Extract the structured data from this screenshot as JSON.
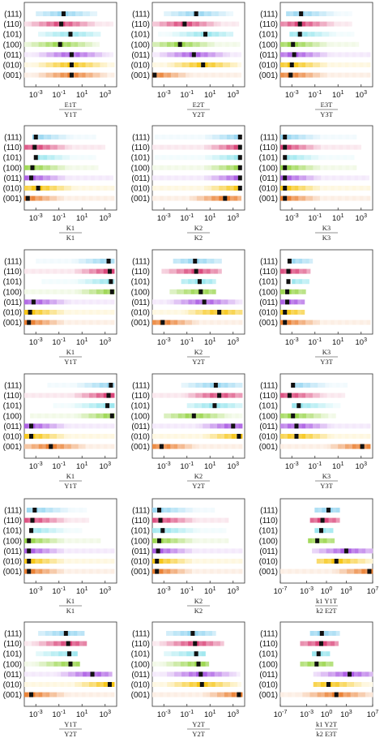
{
  "chart_data": {
    "type": "heatmap",
    "description_layout": "6 rows x 3 columns grid of panels; each panel has 7 horizontal strips (one per crystal direction) with a black marker",
    "row_labels": [
      "(111)",
      "(110)",
      "(101)",
      "(100)",
      "(011)",
      "(010)",
      "(001)"
    ],
    "series_colors": [
      "#8fd3f0",
      "#d6336c",
      "#8fe3ec",
      "#8fd13a",
      "#a24be0",
      "#f5c000",
      "#e8731e"
    ],
    "x_scale": "log10",
    "panels": [
      {
        "xlabel": "E1T / Y1T",
        "xlim_exp": [
          -4,
          4
        ],
        "ticks": [
          "10-3",
          "10-1",
          "101",
          "103"
        ],
        "strips": [
          {
            "from": -3.0,
            "to": 2.3,
            "marker": -0.6
          },
          {
            "from": -4.0,
            "to": 3.7,
            "marker": -0.8
          },
          {
            "from": -2.8,
            "to": 2.6,
            "marker": 0.0
          },
          {
            "from": -4.0,
            "to": 2.5,
            "marker": -0.9
          },
          {
            "from": -4.0,
            "to": 3.7,
            "marker": 0.1
          },
          {
            "from": -4.0,
            "to": 3.8,
            "marker": 0.1
          },
          {
            "from": -4.0,
            "to": 3.8,
            "marker": 0.1
          }
        ]
      },
      {
        "xlabel": "E2T / Y2T",
        "xlim_exp": [
          -4,
          4
        ],
        "ticks": [
          "10-3",
          "10-1",
          "101",
          "103"
        ],
        "strips": [
          {
            "from": -3.0,
            "to": 3.0,
            "marker": -0.2
          },
          {
            "from": -4.0,
            "to": 3.5,
            "marker": -1.2
          },
          {
            "from": -3.5,
            "to": 3.0,
            "marker": 0.6
          },
          {
            "from": -4.0,
            "to": 3.6,
            "marker": -1.6
          },
          {
            "from": -4.0,
            "to": 3.7,
            "marker": -0.4
          },
          {
            "from": -4.0,
            "to": 3.7,
            "marker": 0.4
          },
          {
            "from": -4.0,
            "to": 3.7,
            "marker": -3.8
          }
        ]
      },
      {
        "xlabel": "E3T / Y3T",
        "xlim_exp": [
          -4,
          4
        ],
        "ticks": [
          "10-3",
          "10-1",
          "101",
          "103"
        ],
        "strips": [
          {
            "from": -3.5,
            "to": 2.2,
            "marker": -2.2
          },
          {
            "from": -4.0,
            "to": 2.2,
            "marker": -2.3
          },
          {
            "from": -3.2,
            "to": 2.4,
            "marker": -2.3
          },
          {
            "from": -4.0,
            "to": 2.8,
            "marker": -2.9
          },
          {
            "from": -4.0,
            "to": 3.8,
            "marker": -2.8
          },
          {
            "from": -4.0,
            "to": 3.8,
            "marker": -3.0
          },
          {
            "from": -4.0,
            "to": 3.8,
            "marker": -3.1
          }
        ]
      },
      {
        "xlabel": "K1 / K1",
        "xlim_exp": [
          -4,
          4
        ],
        "ticks": [
          "10-3",
          "10-1",
          "101",
          "103"
        ],
        "strips": [
          {
            "from": -3.3,
            "to": 2.2,
            "marker": -3.0
          },
          {
            "from": -4.0,
            "to": 3.0,
            "marker": -3.1
          },
          {
            "from": -3.0,
            "to": 2.2,
            "marker": -3.0
          },
          {
            "from": -4.0,
            "to": 2.4,
            "marker": -3.3
          },
          {
            "from": -4.0,
            "to": 3.7,
            "marker": -3.4
          },
          {
            "from": -4.0,
            "to": 3.8,
            "marker": -2.8
          },
          {
            "from": -4.0,
            "to": 3.8,
            "marker": -3.7
          }
        ]
      },
      {
        "xlabel": "K2 / K2",
        "xlim_exp": [
          -4,
          4
        ],
        "ticks": [
          "10-3",
          "10-1",
          "101",
          "103"
        ],
        "strips": [
          {
            "from": -3.8,
            "to": 3.7,
            "marker": 3.6
          },
          {
            "from": -4.0,
            "to": 3.7,
            "marker": 3.6
          },
          {
            "from": -3.8,
            "to": 3.7,
            "marker": 3.6
          },
          {
            "from": -4.0,
            "to": 3.7,
            "marker": 3.6
          },
          {
            "from": -4.0,
            "to": 3.7,
            "marker": 3.6
          },
          {
            "from": -4.0,
            "to": 3.7,
            "marker": 3.6
          },
          {
            "from": -4.0,
            "to": 3.7,
            "marker": 2.3
          }
        ]
      },
      {
        "xlabel": "K3 / K3",
        "xlim_exp": [
          -4,
          4
        ],
        "ticks": [
          "10-3",
          "10-1",
          "101",
          "103"
        ],
        "strips": [
          {
            "from": -4.0,
            "to": 2.6,
            "marker": -3.6
          },
          {
            "from": -4.0,
            "to": 3.0,
            "marker": -3.6
          },
          {
            "from": -3.5,
            "to": 2.4,
            "marker": -3.6
          },
          {
            "from": -4.0,
            "to": 2.6,
            "marker": -3.6
          },
          {
            "from": -4.0,
            "to": 3.7,
            "marker": -3.6
          },
          {
            "from": -4.0,
            "to": 3.8,
            "marker": -3.6
          },
          {
            "from": -4.0,
            "to": 3.8,
            "marker": -3.6
          }
        ]
      },
      {
        "xlabel": "K1 / Y1T",
        "xlim_exp": [
          -4,
          4
        ],
        "ticks": [
          "10-3",
          "10-1",
          "101",
          "103"
        ],
        "strips": [
          {
            "from": -3.0,
            "to": 3.8,
            "marker": 3.3
          },
          {
            "from": -4.0,
            "to": 3.8,
            "marker": 3.4
          },
          {
            "from": -2.5,
            "to": 3.8,
            "marker": 3.5
          },
          {
            "from": -4.0,
            "to": 3.8,
            "marker": 3.6
          },
          {
            "from": -4.0,
            "to": 3.8,
            "marker": -3.2
          },
          {
            "from": -4.0,
            "to": 3.8,
            "marker": -3.5
          },
          {
            "from": -4.0,
            "to": 3.8,
            "marker": -3.6
          }
        ]
      },
      {
        "xlabel": "K2 / Y2T",
        "xlim_exp": [
          -4,
          4
        ],
        "ticks": [
          "10-3",
          "10-1",
          "101",
          "103"
        ],
        "strips": [
          {
            "from": -2.2,
            "to": 2.0,
            "marker": -0.3
          },
          {
            "from": -3.2,
            "to": 2.0,
            "marker": -0.2
          },
          {
            "from": -1.5,
            "to": 1.5,
            "marker": 0.1
          },
          {
            "from": -2.5,
            "to": 1.5,
            "marker": 0.2
          },
          {
            "from": -4.0,
            "to": 3.8,
            "marker": 0.5
          },
          {
            "from": -4.0,
            "to": 3.8,
            "marker": 1.8
          },
          {
            "from": -4.0,
            "to": 3.8,
            "marker": -3.1
          }
        ]
      },
      {
        "xlabel": "K3 / Y3T",
        "xlim_exp": [
          -4,
          4
        ],
        "ticks": [
          "10-3",
          "10-1",
          "101",
          "103"
        ],
        "strips": [
          {
            "from": -3.0,
            "to": -1.2,
            "marker": -3.2
          },
          {
            "from": -4.0,
            "to": -1.4,
            "marker": -3.3
          },
          {
            "from": -3.0,
            "to": -1.5,
            "marker": -3.3
          },
          {
            "from": -4.0,
            "to": -1.8,
            "marker": -3.4
          },
          {
            "from": -4.0,
            "to": -1.9,
            "marker": -3.4
          },
          {
            "from": -4.0,
            "to": -1.9,
            "marker": -3.6
          },
          {
            "from": -4.0,
            "to": 3.8,
            "marker": -3.6
          }
        ]
      },
      {
        "xlabel": "K1 / Y1T",
        "xlim_exp": [
          -4,
          4
        ],
        "ticks": [
          "10-3",
          "10-1",
          "101",
          "103"
        ],
        "strips": [
          {
            "from": -2.0,
            "to": 3.8,
            "marker": 3.5
          },
          {
            "from": -4.0,
            "to": 3.8,
            "marker": 3.3
          },
          {
            "from": -1.5,
            "to": 3.8,
            "marker": 3.2
          },
          {
            "from": -3.5,
            "to": 3.8,
            "marker": 3.6
          },
          {
            "from": -4.0,
            "to": 3.8,
            "marker": -3.4
          },
          {
            "from": -4.0,
            "to": 3.8,
            "marker": -3.4
          },
          {
            "from": -4.0,
            "to": 3.8,
            "marker": -1.7
          }
        ]
      },
      {
        "xlabel": "K2 / Y2T",
        "xlim_exp": [
          -4,
          4
        ],
        "ticks": [
          "10-3",
          "10-1",
          "101",
          "103"
        ],
        "strips": [
          {
            "from": -1.5,
            "to": 3.8,
            "marker": 1.5
          },
          {
            "from": -4.0,
            "to": 3.8,
            "marker": 1.8
          },
          {
            "from": -1.0,
            "to": 3.8,
            "marker": 1.4
          },
          {
            "from": -3.0,
            "to": 3.8,
            "marker": -0.4
          },
          {
            "from": -4.0,
            "to": 3.8,
            "marker": 3.0
          },
          {
            "from": -4.0,
            "to": 3.8,
            "marker": 3.5
          },
          {
            "from": -4.0,
            "to": 3.8,
            "marker": -3.2
          }
        ]
      },
      {
        "xlabel": "K3 / Y3T",
        "xlim_exp": [
          -4,
          4
        ],
        "ticks": [
          "10-3",
          "10-1",
          "101",
          "103"
        ],
        "strips": [
          {
            "from": -3.0,
            "to": 1.8,
            "marker": -2.9
          },
          {
            "from": -4.0,
            "to": 1.6,
            "marker": -3.2
          },
          {
            "from": -3.0,
            "to": 1.2,
            "marker": -2.4
          },
          {
            "from": -4.0,
            "to": 0.8,
            "marker": -2.9
          },
          {
            "from": -4.0,
            "to": 3.8,
            "marker": -2.6
          },
          {
            "from": -4.0,
            "to": 3.8,
            "marker": -2.6
          },
          {
            "from": -4.0,
            "to": 3.8,
            "marker": 3.1
          }
        ]
      },
      {
        "xlabel": "K1 / K1",
        "xlim_exp": [
          -4,
          4
        ],
        "ticks": [
          "10-3",
          "10-1",
          "101",
          "103"
        ],
        "strips": [
          {
            "from": -3.8,
            "to": 1.4,
            "marker": -3.1
          },
          {
            "from": -4.0,
            "to": 1.6,
            "marker": -3.3
          },
          {
            "from": -3.5,
            "to": 1.0,
            "marker": -3.4
          },
          {
            "from": -4.0,
            "to": 2.6,
            "marker": -3.6
          },
          {
            "from": -4.0,
            "to": 3.8,
            "marker": -3.6
          },
          {
            "from": -4.0,
            "to": 3.8,
            "marker": -3.6
          },
          {
            "from": -4.0,
            "to": 3.8,
            "marker": -3.6
          }
        ]
      },
      {
        "xlabel": "K2 / K2",
        "xlim_exp": [
          -4,
          4
        ],
        "ticks": [
          "10-3",
          "10-1",
          "101",
          "103"
        ],
        "strips": [
          {
            "from": -4.0,
            "to": 1.4,
            "marker": -3.4
          },
          {
            "from": -4.0,
            "to": 2.6,
            "marker": -3.3
          },
          {
            "from": -4.0,
            "to": 2.4,
            "marker": -3.1
          },
          {
            "from": -4.0,
            "to": 2.6,
            "marker": -3.4
          },
          {
            "from": -4.0,
            "to": 3.8,
            "marker": -3.5
          },
          {
            "from": -4.0,
            "to": 3.8,
            "marker": -3.6
          },
          {
            "from": -4.0,
            "to": 3.8,
            "marker": -3.6
          }
        ]
      },
      {
        "xlabel": "k1 Y1T / k2 E2T",
        "xlim_exp": [
          -7,
          7
        ],
        "ticks": [
          "10-7",
          "10-3",
          "100",
          "103",
          "107"
        ],
        "strips": [
          {
            "from": -1.8,
            "to": 2.0,
            "marker": 0.3
          },
          {
            "from": -2.5,
            "to": 2.0,
            "marker": -0.6
          },
          {
            "from": -1.8,
            "to": 1.0,
            "marker": -0.8
          },
          {
            "from": -2.8,
            "to": 1.2,
            "marker": -1.4
          },
          {
            "from": -2.2,
            "to": 7.0,
            "marker": 3.0
          },
          {
            "from": -1.5,
            "to": 7.0,
            "marker": 1.5
          },
          {
            "from": -7.0,
            "to": 7.0,
            "marker": 6.5
          }
        ]
      },
      {
        "xlabel": "Y1T / Y2T",
        "xlim_exp": [
          -4,
          4
        ],
        "ticks": [
          "10-3",
          "10-1",
          "101",
          "103"
        ],
        "strips": [
          {
            "from": -2.8,
            "to": 1.2,
            "marker": -0.4
          },
          {
            "from": -4.0,
            "to": 1.4,
            "marker": -0.2
          },
          {
            "from": -3.0,
            "to": 0.6,
            "marker": -0.1
          },
          {
            "from": -4.0,
            "to": 0.8,
            "marker": 0.0
          },
          {
            "from": -4.0,
            "to": 3.6,
            "marker": 1.9
          },
          {
            "from": -4.0,
            "to": 3.8,
            "marker": 3.4
          },
          {
            "from": -4.0,
            "to": 3.8,
            "marker": -3.4
          }
        ]
      },
      {
        "xlabel": "Y2T / Y2T",
        "xlim_exp": [
          -4,
          4
        ],
        "ticks": [
          "10-3",
          "10-1",
          "101",
          "103"
        ],
        "strips": [
          {
            "from": -2.8,
            "to": 1.5,
            "marker": -0.5
          },
          {
            "from": -4.0,
            "to": 2.2,
            "marker": -0.3
          },
          {
            "from": -3.0,
            "to": 0.6,
            "marker": -0.2
          },
          {
            "from": -4.0,
            "to": 0.9,
            "marker": 0.0
          },
          {
            "from": -4.0,
            "to": 3.6,
            "marker": 0.2
          },
          {
            "from": -4.0,
            "to": 3.7,
            "marker": 0.3
          },
          {
            "from": -4.0,
            "to": 3.8,
            "marker": 3.5
          }
        ]
      },
      {
        "xlabel": "k1 Y2T / k2 E3T",
        "xlim_exp": [
          -7,
          7
        ],
        "ticks": [
          "10-7",
          "10-3",
          "100",
          "103",
          "107"
        ],
        "strips": [
          {
            "from": -2.5,
            "to": 2.0,
            "marker": -0.7
          },
          {
            "from": -4.0,
            "to": 1.8,
            "marker": -0.8
          },
          {
            "from": -2.2,
            "to": 0.5,
            "marker": -1.2
          },
          {
            "from": -4.0,
            "to": 1.0,
            "marker": -1.5
          },
          {
            "from": -2.0,
            "to": 7.0,
            "marker": 3.5
          },
          {
            "from": -2.0,
            "to": 7.0,
            "marker": 0.3
          },
          {
            "from": -7.0,
            "to": 7.0,
            "marker": 1.5
          }
        ]
      }
    ]
  }
}
